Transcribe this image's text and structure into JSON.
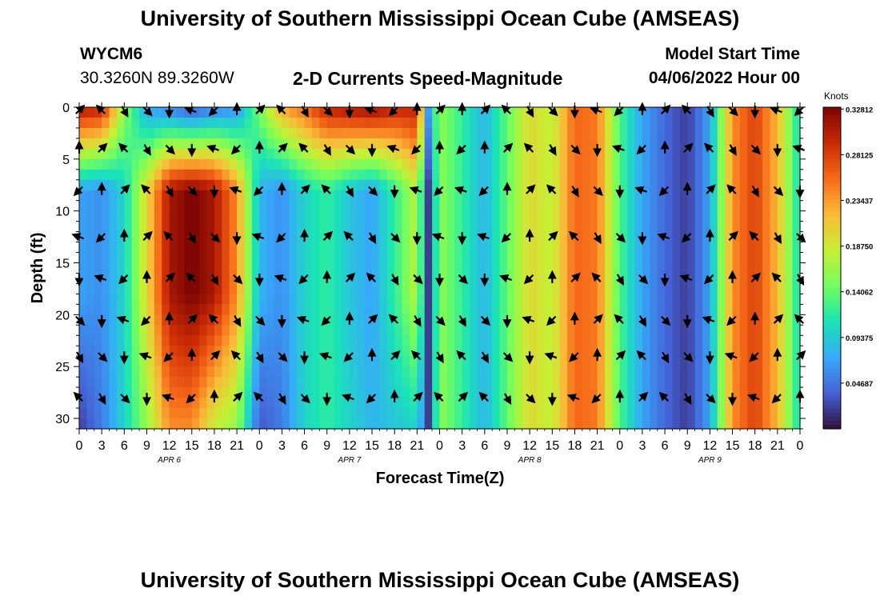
{
  "header": {
    "title": "University of Southern Mississippi Ocean Cube (AMSEAS)",
    "station_id": "WYCM6",
    "station_coords": "30.3260N  89.3260W",
    "subtitle": "2-D Currents Speed-Magnitude",
    "model_start_label": "Model Start Time",
    "model_start_value": "04/06/2022 Hour 00"
  },
  "footer": {
    "title": "University of Southern Mississippi Ocean Cube (AMSEAS)"
  },
  "chart_data": {
    "type": "heatmap",
    "xlabel": "Forecast Time(Z)",
    "ylabel": "Depth (ft)",
    "x_tick_labels": [
      "0",
      "3",
      "6",
      "9",
      "12",
      "15",
      "18",
      "21",
      "0",
      "3",
      "6",
      "9",
      "12",
      "15",
      "18",
      "21",
      "0",
      "3",
      "6",
      "9",
      "12",
      "15",
      "18",
      "21",
      "0",
      "3",
      "6",
      "9",
      "12",
      "15",
      "18",
      "21",
      "0"
    ],
    "date_labels": [
      "APR 6",
      "APR 7",
      "APR 8",
      "APR 9"
    ],
    "xlim_hours": [
      0,
      96
    ],
    "y_ticks": [
      0,
      5,
      10,
      15,
      20,
      25,
      30
    ],
    "ylim": [
      0,
      31
    ],
    "colorbar": {
      "unit": "Knots",
      "ticks": [
        "0.32812",
        "0.28125",
        "0.23437",
        "0.18750",
        "0.14062",
        "0.09375",
        "0.04687"
      ],
      "range": [
        0.0,
        0.33
      ]
    },
    "colormap": [
      "#30123b",
      "#4662d7",
      "#36aaf9",
      "#1ae4b6",
      "#72fe5e",
      "#c7ef34",
      "#fabb39",
      "#f66b19",
      "#cb2a04",
      "#7a0403"
    ],
    "arrow_depths": [
      0,
      4,
      8,
      12.5,
      16.5,
      20.5,
      24,
      28
    ],
    "speed_profile": {
      "hours": [
        0,
        3,
        6,
        9,
        12,
        15,
        18,
        21,
        24,
        27,
        30,
        33,
        36,
        39,
        42,
        45,
        46.5,
        48,
        51,
        54,
        57,
        60,
        63,
        66,
        69,
        72,
        75,
        78,
        81,
        84,
        87,
        90,
        93,
        96
      ],
      "surface": [
        0.31,
        0.3,
        0.16,
        0.07,
        0.05,
        0.03,
        0.05,
        0.06,
        0.15,
        0.23,
        0.26,
        0.3,
        0.31,
        0.32,
        0.3,
        0.3,
        0.07,
        0.16,
        0.12,
        0.08,
        0.14,
        0.2,
        0.18,
        0.26,
        0.25,
        0.13,
        0.07,
        0.04,
        0.02,
        0.07,
        0.24,
        0.28,
        0.22,
        0.1
      ],
      "mid": [
        0.07,
        0.06,
        0.1,
        0.2,
        0.31,
        0.33,
        0.31,
        0.24,
        0.08,
        0.06,
        0.1,
        0.12,
        0.09,
        0.07,
        0.12,
        0.18,
        0.02,
        0.16,
        0.12,
        0.08,
        0.14,
        0.2,
        0.18,
        0.26,
        0.25,
        0.13,
        0.07,
        0.04,
        0.02,
        0.07,
        0.24,
        0.28,
        0.22,
        0.1
      ],
      "bottom": [
        0.02,
        0.05,
        0.1,
        0.16,
        0.24,
        0.24,
        0.18,
        0.16,
        0.03,
        0.05,
        0.1,
        0.12,
        0.1,
        0.08,
        0.09,
        0.1,
        0.02,
        0.16,
        0.12,
        0.08,
        0.14,
        0.2,
        0.18,
        0.26,
        0.25,
        0.13,
        0.07,
        0.04,
        0.02,
        0.07,
        0.24,
        0.28,
        0.22,
        0.1
      ]
    }
  }
}
